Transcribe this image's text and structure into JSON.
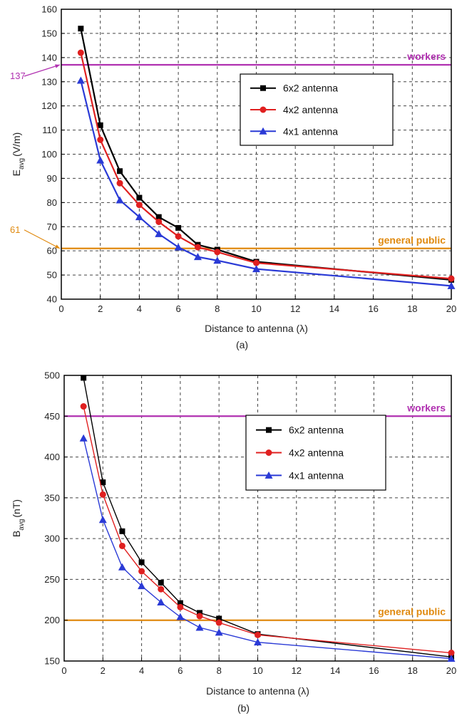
{
  "chart_data": [
    {
      "type": "line",
      "caption": "(a)",
      "ylabel_main": "E",
      "ylabel_sub": "avg",
      "ylabel_unit": "(V/m)",
      "xlabel": "Distance to antenna (λ)",
      "xlim": [
        0,
        20
      ],
      "ylim": [
        40,
        160
      ],
      "xticks": [
        0,
        2,
        4,
        6,
        8,
        10,
        12,
        14,
        16,
        18,
        20
      ],
      "yticks": [
        40,
        50,
        60,
        70,
        80,
        90,
        100,
        110,
        120,
        130,
        140,
        150,
        160
      ],
      "grid": true,
      "legend_position": "top-right",
      "legend_box_fill": "#ffffff",
      "series": [
        {
          "name": "6x2 antenna",
          "color": "#000000",
          "marker": "square",
          "x": [
            1,
            2,
            3,
            4,
            5,
            6,
            7,
            8,
            10,
            20
          ],
          "values": [
            152,
            112,
            93,
            82,
            74,
            69.5,
            62.5,
            60.5,
            55.5,
            48
          ]
        },
        {
          "name": "4x2 antenna",
          "color": "#e02020",
          "marker": "circle",
          "x": [
            1,
            2,
            3,
            4,
            5,
            6,
            7,
            8,
            10,
            20
          ],
          "values": [
            142,
            106,
            88,
            79,
            72,
            66,
            61.5,
            59.5,
            55,
            48.5
          ]
        },
        {
          "name": "4x1 antenna",
          "color": "#2a3ad6",
          "marker": "triangle",
          "x": [
            1,
            2,
            3,
            4,
            5,
            6,
            7,
            8,
            10,
            20
          ],
          "values": [
            130.5,
            97.5,
            81,
            74,
            67,
            61.5,
            57.5,
            56,
            52.5,
            45.5
          ]
        }
      ],
      "reference_lines": [
        {
          "label": "workers",
          "value": 137,
          "color": "#b030b0"
        },
        {
          "label": "general public",
          "value": 61,
          "color": "#e08a10"
        }
      ],
      "annotations": [
        {
          "text": "137",
          "color": "#b030b0"
        },
        {
          "text": "61",
          "color": "#e08a10"
        }
      ]
    },
    {
      "type": "line",
      "caption": "(b)",
      "ylabel_main": "B",
      "ylabel_sub": "avg",
      "ylabel_unit": "(nT)",
      "xlabel": "Distance to antenna (λ)",
      "xlim": [
        0,
        20
      ],
      "ylim": [
        150,
        500
      ],
      "xticks": [
        0,
        2,
        4,
        6,
        8,
        10,
        12,
        14,
        16,
        18,
        20
      ],
      "yticks": [
        150,
        200,
        250,
        300,
        350,
        400,
        450,
        500
      ],
      "grid": true,
      "legend_position": "top-right",
      "legend_box_fill": "#ffffff",
      "series": [
        {
          "name": "6x2 antenna",
          "color": "#000000",
          "marker": "square",
          "x": [
            1,
            2,
            3,
            4,
            5,
            6,
            7,
            8,
            10,
            20
          ],
          "values": [
            497,
            369,
            309,
            271,
            246,
            221,
            209,
            202,
            183,
            155
          ]
        },
        {
          "name": "4x2 antenna",
          "color": "#e02020",
          "marker": "circle",
          "x": [
            1,
            2,
            3,
            4,
            5,
            6,
            7,
            8,
            10,
            20
          ],
          "values": [
            462,
            354,
            291,
            260,
            238,
            216,
            205,
            197,
            182,
            160
          ]
        },
        {
          "name": "4x1 antenna",
          "color": "#2a3ad6",
          "marker": "triangle",
          "x": [
            1,
            2,
            3,
            4,
            5,
            6,
            7,
            8,
            10,
            20
          ],
          "values": [
            423,
            323,
            265,
            242,
            222,
            204,
            191,
            185,
            173,
            153
          ]
        }
      ],
      "reference_lines": [
        {
          "label": "workers",
          "value": 450,
          "color": "#b030b0"
        },
        {
          "label": "general public",
          "value": 200,
          "color": "#e08a10"
        }
      ],
      "annotations": []
    }
  ]
}
